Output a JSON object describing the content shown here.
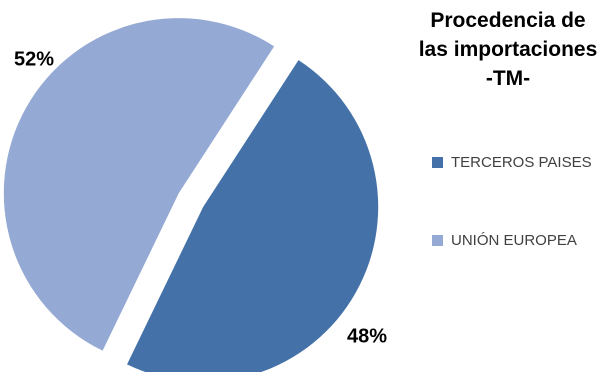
{
  "chart_data": {
    "type": "pie",
    "title_lines": [
      "Procedencia de",
      "las importaciones",
      "-TM-"
    ],
    "slices": [
      {
        "name": "TERCEROS PAISES",
        "value": 48,
        "label": "48%",
        "color": "#4472a8"
      },
      {
        "name": "UNIÓN EUROPEA",
        "value": 52,
        "label": "52%",
        "color": "#94a9d3"
      }
    ],
    "legend_position": "right",
    "exploded": true
  }
}
